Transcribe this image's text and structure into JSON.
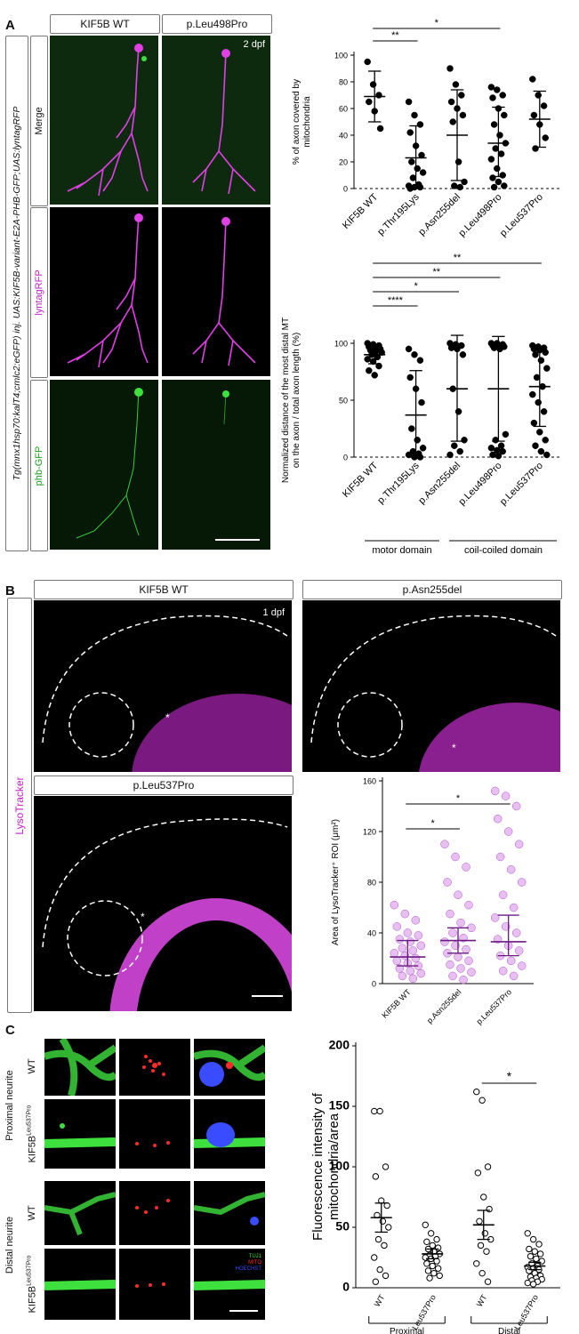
{
  "panel_a": {
    "letter": "A",
    "col_headers": [
      "KIF5B WT",
      "p.Leu498Pro"
    ],
    "row_labels": [
      "Merge",
      "lyntagRFP",
      "phb-GFP"
    ],
    "side_label": "Tg(mnx1hsp70:kalT4;cmlc2:eGFP) inj. UAS:KIF5B-variant-E2A-PHB-GFP;UAS:lyntagRFP",
    "timepoint": "2 dpf"
  },
  "panel_b": {
    "letter": "B",
    "headers": [
      "KIF5B WT",
      "p.Asn255del",
      "p.Leu537Pro"
    ],
    "side_label": "LysoTracker",
    "timepoint": "1 dpf"
  },
  "panel_c": {
    "letter": "C",
    "group_labels": [
      "Proximal neurite",
      "Distal neurite"
    ],
    "row_labels": [
      "WT",
      "KIF5B",
      "WT",
      "KIF5B"
    ],
    "row_sup": "Leu537Pro",
    "legend": [
      "TUJ1",
      "MITO",
      "HOECHST"
    ]
  },
  "colors": {
    "magenta": "#e23ce6",
    "green": "#3ee03e",
    "red": "#ff2a2a",
    "blue": "#3a4cff"
  },
  "chart_data": [
    {
      "type": "scatter",
      "ylabel": "% of axon covered by mitochondria",
      "ylim": [
        0,
        100
      ],
      "yticks": [
        0,
        20,
        40,
        60,
        80,
        100
      ],
      "categories": [
        "KIF5B WT",
        "p.Thr195Lys",
        "p.Asn255del",
        "p.Leu498Pro",
        "p.Leu537Pro"
      ],
      "points": [
        [
          95,
          78,
          70,
          65,
          58,
          45
        ],
        [
          65,
          55,
          48,
          42,
          32,
          25,
          20,
          15,
          12,
          8,
          3,
          2,
          1,
          1,
          0
        ],
        [
          90,
          78,
          70,
          65,
          60,
          55,
          50,
          20,
          5,
          2,
          1
        ],
        [
          76,
          74,
          70,
          68,
          60,
          55,
          48,
          40,
          34,
          30,
          26,
          22,
          15,
          10,
          8,
          5,
          2,
          1
        ],
        [
          82,
          70,
          62,
          55,
          48,
          38,
          30
        ]
      ],
      "mean": [
        69,
        23,
        40,
        34,
        52
      ],
      "sd_low": [
        50,
        0,
        6,
        9,
        31
      ],
      "sd_high": [
        88,
        47,
        74,
        61,
        73
      ],
      "significance": [
        {
          "from": "KIF5B WT",
          "to": "p.Thr195Lys",
          "label": "**"
        },
        {
          "from": "KIF5B WT",
          "to": "p.Leu498Pro",
          "label": "*"
        }
      ],
      "reference_line": 0
    },
    {
      "type": "scatter",
      "ylabel": "Normalized distance of the most distal MT on the axon / total axon length (%)",
      "ylim": [
        0,
        100
      ],
      "yticks": [
        0,
        50,
        100
      ],
      "categories": [
        "KIF5B WT",
        "p.Thr195Lys",
        "p.Asn255del",
        "p.Leu498Pro",
        "p.Leu537Pro"
      ],
      "points": [
        [
          100,
          99,
          98,
          97,
          96,
          95,
          94,
          93,
          92,
          90,
          88,
          86,
          84,
          80,
          76,
          72
        ],
        [
          95,
          90,
          85,
          70,
          60,
          48,
          25,
          15,
          8,
          5,
          3,
          2,
          0,
          0
        ],
        [
          100,
          99,
          98,
          96,
          95,
          90,
          60,
          40,
          15,
          10,
          5,
          2
        ],
        [
          100,
          100,
          99,
          98,
          98,
          97,
          96,
          95,
          20,
          15,
          10,
          8,
          6,
          5,
          2,
          1
        ],
        [
          98,
          97,
          96,
          95,
          94,
          92,
          90,
          85,
          78,
          70,
          62,
          55,
          48,
          40,
          30,
          22,
          15,
          10,
          5,
          2
        ]
      ],
      "mean": [
        90,
        37,
        60,
        60,
        62
      ],
      "sd_low": [
        82,
        0,
        14,
        14,
        27
      ],
      "sd_high": [
        98,
        76,
        107,
        106,
        97
      ],
      "significance": [
        {
          "from": "KIF5B WT",
          "to": "p.Thr195Lys",
          "label": "****"
        },
        {
          "from": "KIF5B WT",
          "to": "p.Asn255del",
          "label": "*"
        },
        {
          "from": "KIF5B WT",
          "to": "p.Leu498Pro",
          "label": "**"
        },
        {
          "from": "KIF5B WT",
          "to": "p.Leu537Pro",
          "label": "**"
        }
      ],
      "domain_groups": [
        {
          "label": "motor domain",
          "categories": [
            "KIF5B WT",
            "p.Thr195Lys",
            "p.Asn255del"
          ]
        },
        {
          "label": "coil-coiled domain",
          "categories": [
            "p.Leu498Pro",
            "p.Leu537Pro"
          ]
        }
      ],
      "reference_line": 0
    },
    {
      "type": "scatter",
      "ylabel": "Area of LysoTracker⁺ ROI (μm²)",
      "ylim": [
        0,
        160
      ],
      "yticks": [
        0,
        40,
        80,
        120,
        160
      ],
      "categories": [
        "KIF5B WT",
        "p.Asn255del",
        "p.Leu537Pro"
      ],
      "points": [
        [
          62,
          55,
          50,
          45,
          40,
          38,
          35,
          33,
          30,
          28,
          26,
          24,
          22,
          20,
          18,
          16,
          14,
          12,
          10,
          8,
          6,
          4
        ],
        [
          110,
          100,
          92,
          80,
          70,
          62,
          55,
          48,
          44,
          40,
          36,
          33,
          30,
          27,
          24,
          21,
          18,
          15,
          12,
          9,
          6,
          3
        ],
        [
          152,
          148,
          140,
          130,
          120,
          110,
          100,
          90,
          80,
          70,
          60,
          52,
          45,
          40,
          35,
          30,
          26,
          22,
          18,
          14,
          10,
          6
        ]
      ],
      "median": [
        21,
        34,
        33
      ],
      "q_low": [
        14,
        24,
        22
      ],
      "q_high": [
        34,
        44,
        54
      ],
      "significance": [
        {
          "from": "KIF5B WT",
          "to": "p.Asn255del",
          "label": "*"
        },
        {
          "from": "KIF5B WT",
          "to": "p.Leu537Pro",
          "label": "*"
        }
      ]
    },
    {
      "type": "scatter",
      "ylabel": "Fluorescence intensity of mitochondria/area",
      "ylim": [
        0,
        200
      ],
      "yticks": [
        0,
        50,
        100,
        150,
        200
      ],
      "categories": [
        "WT",
        "Leu537Pro",
        "WT",
        "Leu537Pro"
      ],
      "groups": [
        {
          "label": "Proximal",
          "categories": [
            "WT",
            "Leu537Pro"
          ]
        },
        {
          "label": "Distal",
          "categories": [
            "WT",
            "Leu537Pro"
          ]
        }
      ],
      "points": [
        [
          146,
          146,
          100,
          92,
          72,
          68,
          60,
          55,
          50,
          40,
          35,
          25,
          15,
          10,
          5
        ],
        [
          52,
          45,
          40,
          38,
          35,
          33,
          32,
          30,
          28,
          27,
          26,
          25,
          24,
          22,
          20,
          18,
          16,
          14,
          12,
          10,
          8
        ],
        [
          162,
          155,
          100,
          95,
          75,
          65,
          55,
          45,
          40,
          35,
          30,
          20,
          12,
          5
        ],
        [
          45,
          40,
          36,
          32,
          30,
          28,
          26,
          24,
          22,
          20,
          18,
          17,
          16,
          15,
          14,
          12,
          10,
          9,
          8,
          7,
          6,
          5,
          4,
          3
        ]
      ],
      "mean": [
        58,
        28,
        52,
        18
      ],
      "sem_low": [
        46,
        24,
        40,
        15
      ],
      "sem_high": [
        70,
        32,
        64,
        21
      ],
      "significance": [
        {
          "from": 2,
          "to": 3,
          "label": "*"
        }
      ]
    }
  ]
}
